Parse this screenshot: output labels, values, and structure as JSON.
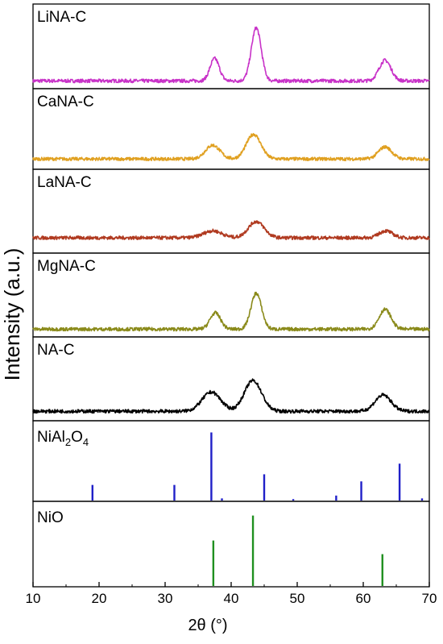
{
  "chart_data": {
    "type": "line",
    "subtype": "stacked-xrd-panels",
    "xlabel": "2θ (°)",
    "ylabel": "Intensity (a.u.)",
    "xlim": [
      10,
      70
    ],
    "x_ticks": [
      "10",
      "20",
      "30",
      "40",
      "50",
      "60",
      "70"
    ],
    "grid": false,
    "panels": [
      {
        "label": "LiNA-C",
        "color": "#c832c8",
        "baseline": 0.05,
        "peaks": [
          {
            "x": 37.5,
            "h": 0.38,
            "w": 0.7
          },
          {
            "x": 43.8,
            "h": 0.9,
            "w": 0.75
          },
          {
            "x": 63.3,
            "h": 0.35,
            "w": 0.9
          }
        ]
      },
      {
        "label": "CaNA-C",
        "color": "#e0a020",
        "baseline": 0.1,
        "peaks": [
          {
            "x": 37.2,
            "h": 0.25,
            "w": 1.1
          },
          {
            "x": 43.4,
            "h": 0.45,
            "w": 1.1
          },
          {
            "x": 63.3,
            "h": 0.22,
            "w": 1.0
          }
        ]
      },
      {
        "label": "LaNA-C",
        "color": "#b03a20",
        "baseline": 0.18,
        "peaks": [
          {
            "x": 37.2,
            "h": 0.12,
            "w": 1.4
          },
          {
            "x": 43.8,
            "h": 0.28,
            "w": 1.2
          },
          {
            "x": 63.4,
            "h": 0.12,
            "w": 1.0
          }
        ]
      },
      {
        "label": "MgNA-C",
        "color": "#8a8a1a",
        "baseline": 0.05,
        "peaks": [
          {
            "x": 37.6,
            "h": 0.28,
            "w": 0.8
          },
          {
            "x": 43.8,
            "h": 0.62,
            "w": 0.8
          },
          {
            "x": 63.3,
            "h": 0.34,
            "w": 0.9
          }
        ]
      },
      {
        "label": "NA-C",
        "color": "#000000",
        "baseline": 0.08,
        "peaks": [
          {
            "x": 37.0,
            "h": 0.33,
            "w": 1.4
          },
          {
            "x": 43.3,
            "h": 0.53,
            "w": 1.3
          },
          {
            "x": 63.0,
            "h": 0.28,
            "w": 1.2
          }
        ]
      }
    ],
    "references": [
      {
        "label_main": "NiAl",
        "label_sub1": "2",
        "label_mid": "O",
        "label_sub2": "4",
        "color": "#2020c8",
        "sticks": [
          {
            "x": 19.0,
            "h": 0.22
          },
          {
            "x": 31.4,
            "h": 0.22
          },
          {
            "x": 37.0,
            "h": 0.96
          },
          {
            "x": 38.6,
            "h": 0.03
          },
          {
            "x": 45.0,
            "h": 0.37
          },
          {
            "x": 49.4,
            "h": 0.02
          },
          {
            "x": 55.9,
            "h": 0.07
          },
          {
            "x": 59.7,
            "h": 0.27
          },
          {
            "x": 65.5,
            "h": 0.52
          },
          {
            "x": 68.9,
            "h": 0.03
          }
        ]
      },
      {
        "label_main": "NiO",
        "color": "#209020",
        "sticks": [
          {
            "x": 37.3,
            "h": 0.6
          },
          {
            "x": 43.3,
            "h": 0.93
          },
          {
            "x": 62.9,
            "h": 0.42
          }
        ]
      }
    ]
  }
}
